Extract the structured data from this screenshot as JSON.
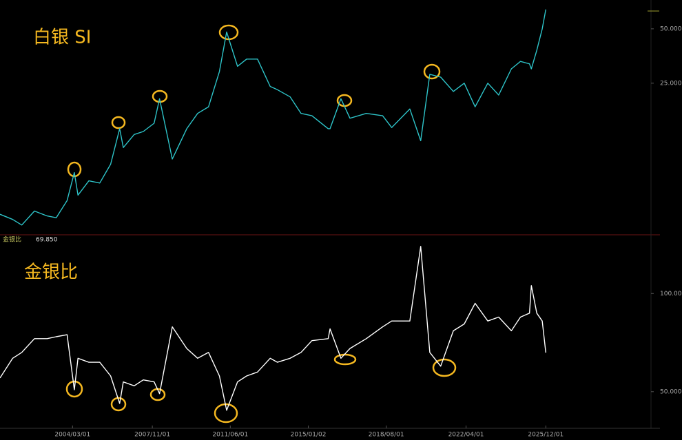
{
  "chart_data": [
    {
      "type": "line",
      "title": "白银 SI",
      "log_scale": true,
      "x": [
        "2000/11/01",
        "2001/06/01",
        "2001/11/01",
        "2002/06/01",
        "2003/01/01",
        "2003/06/01",
        "2003/12/01",
        "2004/04/01",
        "2004/06/01",
        "2004/12/01",
        "2005/06/01",
        "2005/12/01",
        "2006/05/01",
        "2006/07/01",
        "2007/01/01",
        "2007/06/01",
        "2007/12/01",
        "2008/03/01",
        "2008/10/01",
        "2009/06/01",
        "2009/12/01",
        "2010/06/01",
        "2010/12/01",
        "2011/04/01",
        "2011/10/01",
        "2012/03/01",
        "2012/09/01",
        "2013/04/01",
        "2013/08/01",
        "2014/03/01",
        "2014/09/01",
        "2015/03/01",
        "2015/12/01",
        "2016/01/01",
        "2016/07/01",
        "2016/12/01",
        "2017/09/01",
        "2018/06/01",
        "2018/11/01",
        "2019/09/01",
        "2020/03/01",
        "2020/08/01",
        "2021/02/01",
        "2021/09/01",
        "2022/03/01",
        "2022/09/01",
        "2023/04/01",
        "2023/10/01",
        "2024/05/01",
        "2024/10/01",
        "2025/03/01",
        "2025/04/01",
        "2025/07/01",
        "2025/10/01",
        "2025/12/01"
      ],
      "xlim": [
        "2000/11/01",
        "2030/10/01"
      ],
      "series": [
        {
          "color": "#2ec4c9",
          "values": [
            4.7,
            4.4,
            4.1,
            4.9,
            4.6,
            4.5,
            5.6,
            8.0,
            6.0,
            7.2,
            7.0,
            8.9,
            14,
            11,
            13,
            13.5,
            15,
            20.5,
            9.5,
            14,
            17,
            18.5,
            29,
            48,
            31,
            34,
            34,
            24,
            23,
            21,
            17,
            16.5,
            14,
            14,
            20.5,
            16,
            17,
            16.5,
            14.2,
            18,
            12,
            28,
            27,
            22.5,
            25,
            18.5,
            25,
            21.5,
            30,
            33,
            32,
            30,
            38,
            50,
            64
          ]
        }
      ],
      "ylim": [
        3.65,
        72.2
      ],
      "yticks": [
        {
          "value": 25,
          "label": "25.000"
        },
        {
          "value": 50,
          "label": "50.000"
        }
      ]
    },
    {
      "type": "line",
      "title": "金银比",
      "indicator_name": "金银比",
      "indicator_value": {
        "value": 69.85,
        "label": "69.850"
      },
      "x": [
        "2000/11/01",
        "2001/06/01",
        "2001/11/01",
        "2002/06/01",
        "2003/01/01",
        "2003/06/01",
        "2003/12/01",
        "2004/04/01",
        "2004/06/01",
        "2004/12/01",
        "2005/06/01",
        "2005/12/01",
        "2006/05/01",
        "2006/07/01",
        "2007/01/01",
        "2007/06/01",
        "2007/12/01",
        "2008/03/01",
        "2008/10/01",
        "2009/06/01",
        "2009/12/01",
        "2010/06/01",
        "2010/12/01",
        "2011/04/01",
        "2011/10/01",
        "2012/03/01",
        "2012/09/01",
        "2013/04/01",
        "2013/08/01",
        "2014/03/01",
        "2014/09/01",
        "2015/03/01",
        "2015/12/01",
        "2016/01/01",
        "2016/07/01",
        "2016/12/01",
        "2017/09/01",
        "2018/06/01",
        "2018/11/01",
        "2019/09/01",
        "2020/03/01",
        "2020/08/01",
        "2021/02/01",
        "2021/09/01",
        "2022/03/01",
        "2022/09/01",
        "2023/04/01",
        "2023/10/01",
        "2024/05/01",
        "2024/10/01",
        "2025/03/01",
        "2025/04/01",
        "2025/07/01",
        "2025/10/01",
        "2025/12/01"
      ],
      "xlim": [
        "2000/11/01",
        "2030/10/01"
      ],
      "xticks": [
        "2004/03/01",
        "2007/11/01",
        "2011/06/01",
        "2015/01/02",
        "2018/08/01",
        "2022/04/01",
        "2025/12/01"
      ],
      "series": [
        {
          "color": "#ffffff",
          "values": [
            57,
            67,
            70,
            77,
            77,
            78,
            79,
            51,
            67,
            65,
            65,
            58,
            44,
            55,
            53,
            56,
            55,
            49,
            83,
            72,
            67,
            70,
            58,
            40.5,
            55,
            58,
            60,
            67,
            65,
            67,
            70,
            76,
            77,
            82,
            67,
            72,
            77,
            83,
            86,
            86,
            124,
            70,
            63,
            81,
            84.5,
            95,
            86,
            88,
            81,
            88,
            90,
            104,
            90,
            86,
            69.85
          ]
        }
      ],
      "ylim": [
        31.7,
        129.9
      ],
      "yticks": [
        {
          "value": 50,
          "label": "50.000"
        },
        {
          "value": 100,
          "label": "100.000"
        }
      ]
    }
  ]
}
